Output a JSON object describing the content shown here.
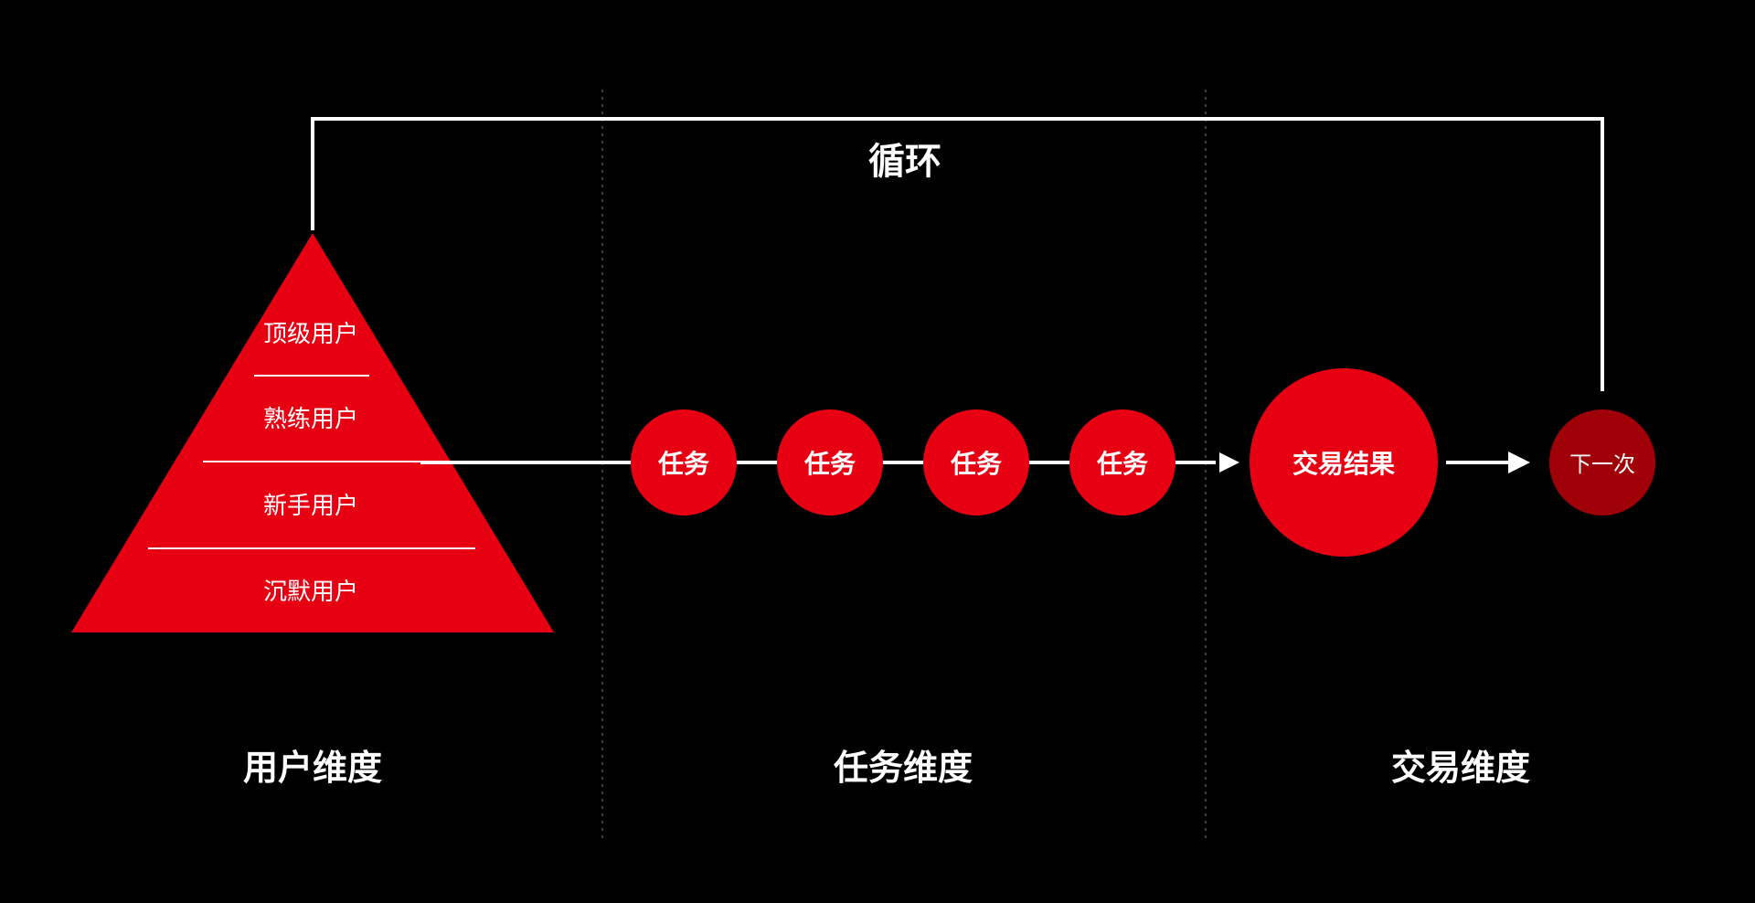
{
  "loop": {
    "label": "循环"
  },
  "pyramid": {
    "levels": [
      {
        "label": "顶级用户"
      },
      {
        "label": "熟练用户"
      },
      {
        "label": "新手用户"
      },
      {
        "label": "沉默用户"
      }
    ]
  },
  "flow": {
    "tasks": [
      {
        "label": "任务"
      },
      {
        "label": "任务"
      },
      {
        "label": "任务"
      },
      {
        "label": "任务"
      }
    ],
    "result": {
      "label": "交易结果"
    },
    "next": {
      "label": "下一次"
    }
  },
  "dimensions": [
    {
      "label": "用户维度"
    },
    {
      "label": "任务维度"
    },
    {
      "label": "交易维度"
    }
  ],
  "colors": {
    "background": "#000000",
    "primary_red": "#e60012",
    "dark_red": "#a00008",
    "line": "#ffffff",
    "divider": "#555555",
    "text": "#ffffff"
  }
}
